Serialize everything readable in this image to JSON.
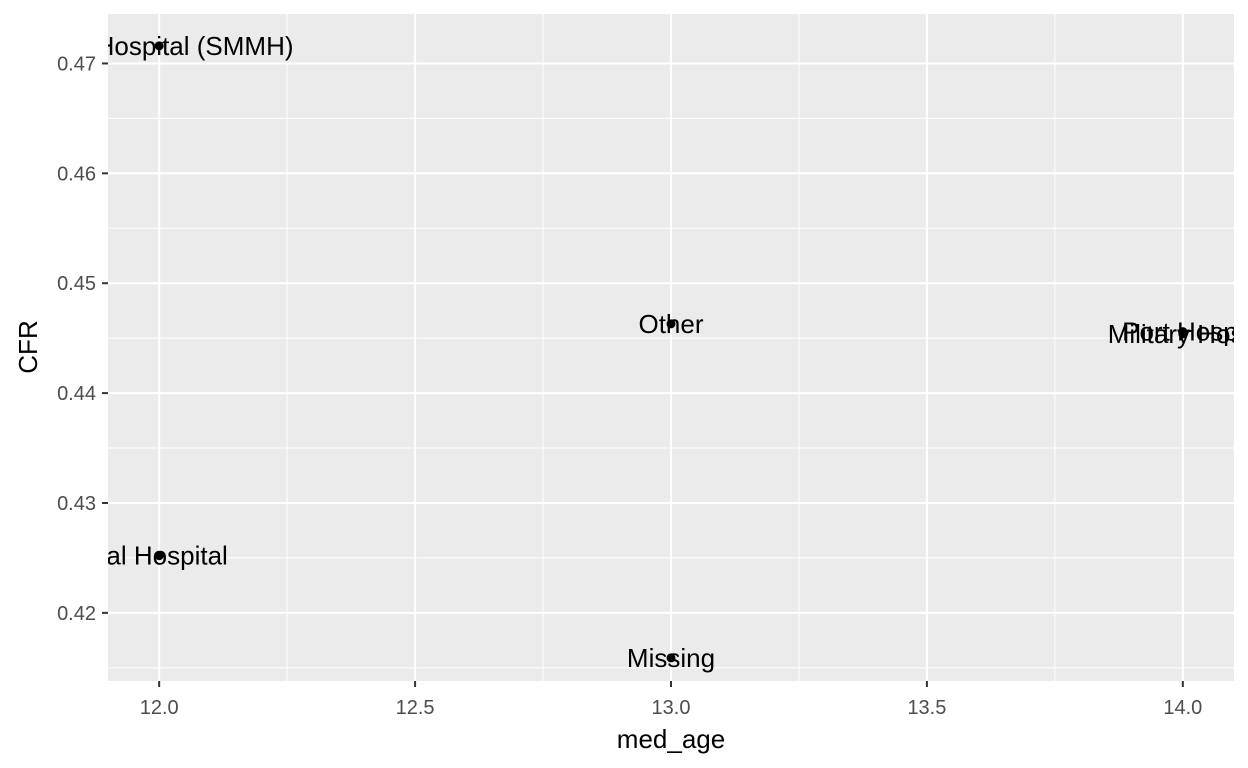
{
  "chart_data": {
    "type": "scatter",
    "title": "",
    "xlabel": "med_age",
    "ylabel": "CFR",
    "xlim": [
      11.9,
      14.1
    ],
    "ylim": [
      0.4138,
      0.4745
    ],
    "x_ticks": [
      "12.0",
      "12.5",
      "13.0",
      "13.5",
      "14.0"
    ],
    "y_ticks": [
      "0.42",
      "0.43",
      "0.44",
      "0.45",
      "0.46",
      "0.47"
    ],
    "grid": true,
    "legend": "none",
    "colors": {
      "panel": "#ebebeb",
      "grid": "#ffffff",
      "point": "#000000",
      "tick_mark": "#333333",
      "tick_text": "#4d4d4d"
    },
    "points": [
      {
        "label": "ernity Hospital (SMMH)",
        "x": 12.0,
        "y": 0.4716
      },
      {
        "label": "tral Hospital",
        "x": 12.0,
        "y": 0.4252
      },
      {
        "label": "Other",
        "x": 13.0,
        "y": 0.4463
      },
      {
        "label": "Missing",
        "x": 13.0,
        "y": 0.4159
      },
      {
        "label": "Port Hospi",
        "x": 14.0,
        "y": 0.4456
      },
      {
        "label": "Military Hosp",
        "x": 14.0,
        "y": 0.4454
      }
    ]
  }
}
